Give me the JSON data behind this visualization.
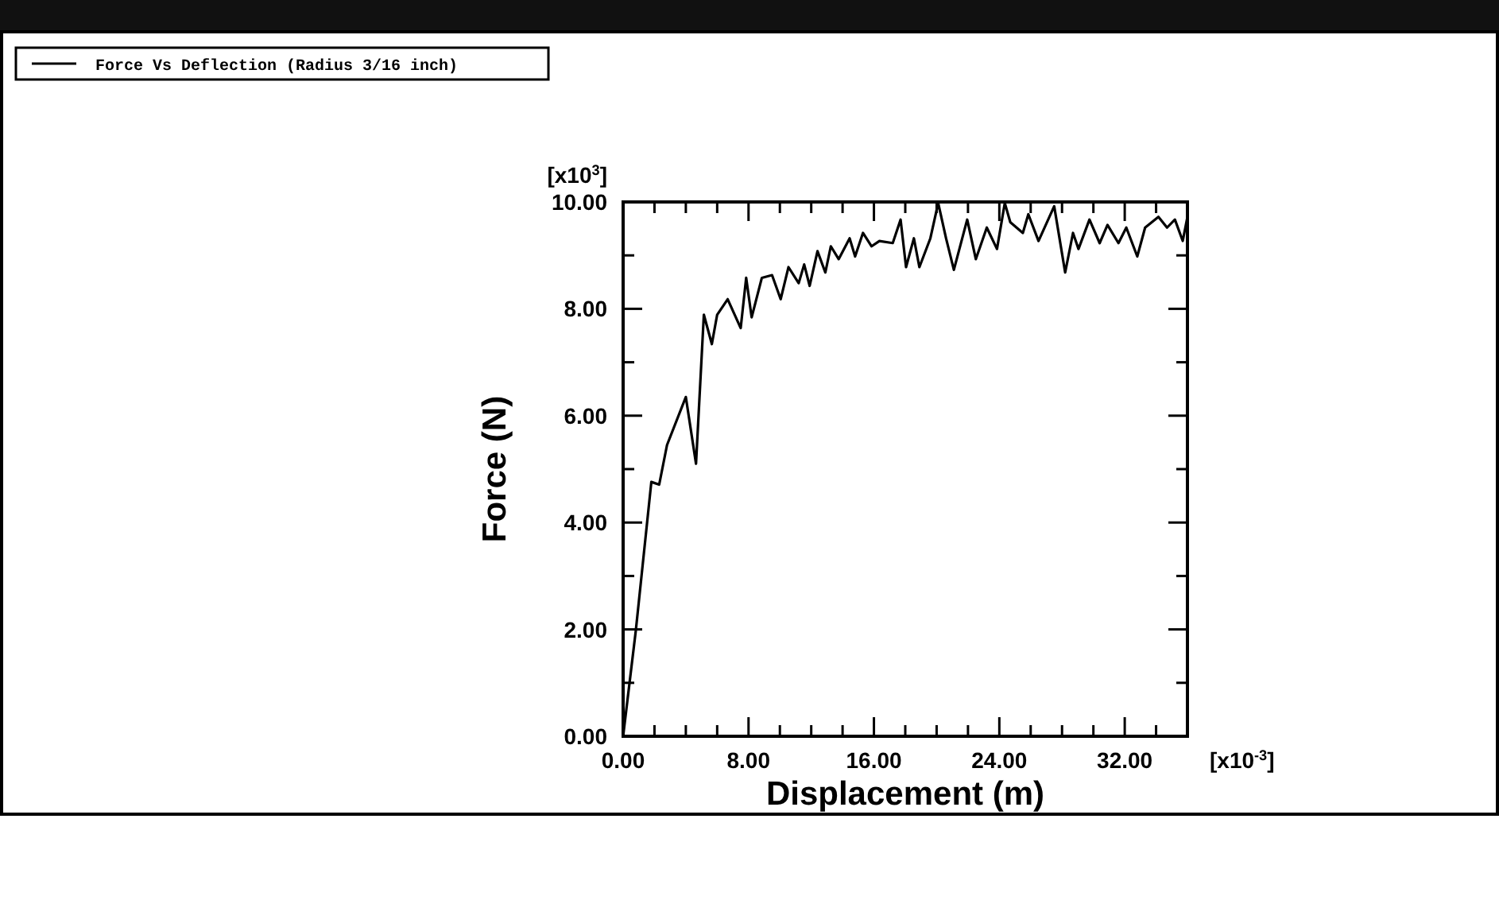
{
  "chart_data": {
    "type": "line",
    "xlabel": "Displacement (m)",
    "ylabel": "Force (N)",
    "annotations": [
      "[x10$^{3}$]",
      "[x10$^{-3}$]"
    ],
    "legend": "top left",
    "marker": "none",
    "line_style": "solid",
    "grid": false,
    "xlim": [
      0,
      36
    ],
    "ylim": [
      0,
      10
    ],
    "xticks": [
      {
        "value": 0,
        "label": "0.00"
      },
      {
        "value": 2,
        "label": null
      },
      {
        "value": 4,
        "label": null
      },
      {
        "value": 6,
        "label": null
      },
      {
        "value": 8,
        "label": "8.00"
      },
      {
        "value": 10,
        "label": null
      },
      {
        "value": 12,
        "label": null
      },
      {
        "value": 14,
        "label": null
      },
      {
        "value": 16,
        "label": "16.00"
      },
      {
        "value": 18,
        "label": null
      },
      {
        "value": 20,
        "label": null
      },
      {
        "value": 22,
        "label": null
      },
      {
        "value": 24,
        "label": "24.00"
      },
      {
        "value": 26,
        "label": null
      },
      {
        "value": 28,
        "label": null
      },
      {
        "value": 30,
        "label": null
      },
      {
        "value": 32,
        "label": "32.00"
      },
      {
        "value": 34,
        "label": null
      }
    ],
    "yticks": [
      {
        "value": 0,
        "label": "0.00"
      },
      {
        "value": 1,
        "label": null
      },
      {
        "value": 2,
        "label": "2.00"
      },
      {
        "value": 3,
        "label": null
      },
      {
        "value": 4,
        "label": "4.00"
      },
      {
        "value": 5,
        "label": null
      },
      {
        "value": 6,
        "label": "6.00"
      },
      {
        "value": 7,
        "label": null
      },
      {
        "value": 8,
        "label": "8.00"
      },
      {
        "value": 9,
        "label": null
      },
      {
        "value": 10,
        "label": "10.00"
      }
    ],
    "series": [
      {
        "name": "Force Vs Deflection (Radius 3/16 inch)",
        "color": "#000000",
        "x": [
          0,
          0.81,
          1.8,
          2.3,
          2.8,
          4.0,
          4.65,
          5.15,
          5.66,
          6.0,
          6.67,
          7.5,
          7.85,
          8.2,
          8.85,
          9.5,
          10.05,
          10.55,
          11.2,
          11.55,
          11.9,
          12.4,
          12.9,
          13.25,
          13.75,
          14.45,
          14.8,
          15.3,
          15.85,
          16.35,
          17.2,
          17.7,
          18.05,
          18.55,
          18.9,
          19.6,
          20.1,
          20.6,
          21.1,
          21.95,
          22.5,
          23.2,
          23.85,
          24.35,
          24.7,
          25.5,
          25.85,
          26.5,
          27.5,
          28.2,
          28.7,
          29.05,
          29.75,
          30.4,
          30.9,
          31.6,
          32.1,
          32.8,
          33.3,
          34.15,
          34.7,
          35.2,
          35.7,
          36
        ],
        "values": [
          0,
          1.98,
          4.76,
          4.71,
          5.45,
          6.35,
          5.1,
          7.89,
          7.34,
          7.89,
          8.18,
          7.64,
          8.58,
          7.84,
          8.58,
          8.63,
          8.18,
          8.78,
          8.48,
          8.83,
          8.43,
          9.08,
          8.68,
          9.17,
          8.93,
          9.32,
          8.98,
          9.42,
          9.17,
          9.27,
          9.23,
          9.67,
          8.78,
          9.32,
          8.78,
          9.32,
          9.98,
          9.32,
          8.73,
          9.67,
          8.93,
          9.52,
          9.12,
          9.98,
          9.62,
          9.42,
          9.77,
          9.27,
          9.92,
          8.68,
          9.42,
          9.12,
          9.67,
          9.23,
          9.57,
          9.23,
          9.52,
          8.98,
          9.52,
          9.72,
          9.52,
          9.67,
          9.27,
          9.72
        ]
      }
    ]
  }
}
